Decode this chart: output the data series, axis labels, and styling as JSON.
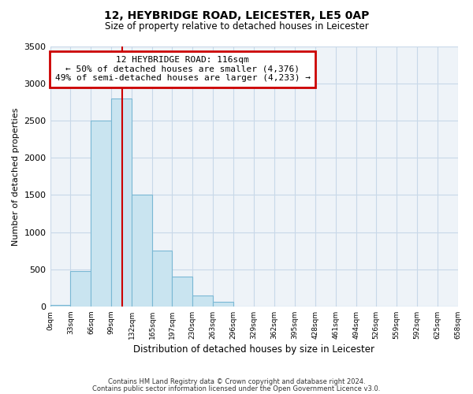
{
  "title": "12, HEYBRIDGE ROAD, LEICESTER, LE5 0AP",
  "subtitle": "Size of property relative to detached houses in Leicester",
  "xlabel": "Distribution of detached houses by size in Leicester",
  "ylabel": "Number of detached properties",
  "footnote1": "Contains HM Land Registry data © Crown copyright and database right 2024.",
  "footnote2": "Contains public sector information licensed under the Open Government Licence v3.0.",
  "bin_edges": [
    0,
    33,
    66,
    99,
    132,
    165,
    197,
    230,
    263,
    296,
    329,
    362,
    395,
    428,
    461,
    494,
    526,
    559,
    592,
    625,
    658
  ],
  "bin_labels": [
    "0sqm",
    "33sqm",
    "66sqm",
    "99sqm",
    "132sqm",
    "165sqm",
    "197sqm",
    "230sqm",
    "263sqm",
    "296sqm",
    "329sqm",
    "362sqm",
    "395sqm",
    "428sqm",
    "461sqm",
    "494sqm",
    "526sqm",
    "559sqm",
    "592sqm",
    "625sqm",
    "658sqm"
  ],
  "bar_heights": [
    20,
    480,
    2500,
    2800,
    1500,
    750,
    400,
    150,
    60,
    0,
    0,
    0,
    0,
    0,
    0,
    0,
    0,
    0,
    0,
    0
  ],
  "bar_color": "#c9e4f0",
  "bar_edge_color": "#7ab8d4",
  "vline_x": 116,
  "vline_color": "#cc0000",
  "annotation_title": "12 HEYBRIDGE ROAD: 116sqm",
  "annotation_line1": "← 50% of detached houses are smaller (4,376)",
  "annotation_line2": "49% of semi-detached houses are larger (4,233) →",
  "annotation_box_edgecolor": "#cc0000",
  "ylim": [
    0,
    3500
  ],
  "yticks": [
    0,
    500,
    1000,
    1500,
    2000,
    2500,
    3000,
    3500
  ],
  "background_color": "#ffffff",
  "grid_color": "#c8d8e8",
  "ax_bg_color": "#eef3f8"
}
